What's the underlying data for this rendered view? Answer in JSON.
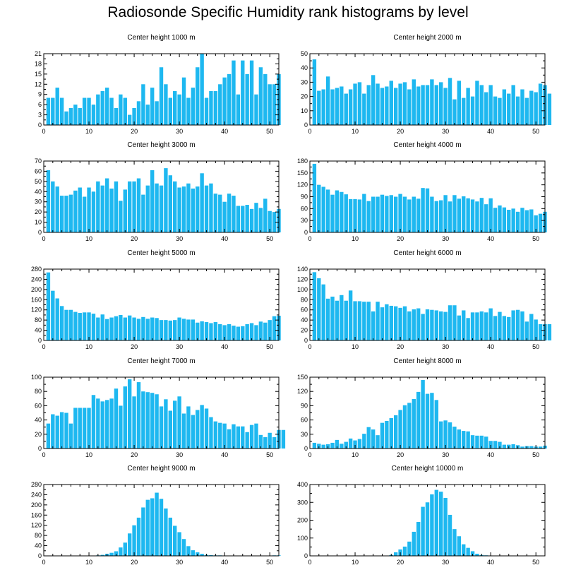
{
  "title": "Radiosonde Specific Humidity rank histograms by level",
  "colors": {
    "bar": "#1EB8F0",
    "bar_edge": "#ffffff",
    "axis": "#000000"
  },
  "chart_data": [
    {
      "type": "bar",
      "title": "Center height 1000 m",
      "xlim": [
        0,
        52
      ],
      "ylim": [
        0,
        21
      ],
      "xticks": [
        0,
        10,
        20,
        30,
        40,
        50
      ],
      "yticks": [
        0,
        3,
        6,
        9,
        12,
        15,
        18,
        21
      ],
      "xlabel": "",
      "ylabel": "",
      "values": [
        8,
        8,
        11,
        8,
        4,
        5,
        6,
        5,
        8,
        8,
        6,
        9,
        10,
        11,
        8,
        5,
        9,
        8,
        3,
        5,
        7,
        12,
        6,
        11,
        7,
        17,
        12,
        8,
        10,
        9,
        14,
        8,
        11,
        17,
        21,
        8,
        10,
        10,
        12,
        14,
        15,
        19,
        9,
        19,
        15,
        19,
        9,
        17,
        15,
        12,
        12,
        15
      ]
    },
    {
      "type": "bar",
      "title": "Center height 2000 m",
      "xlim": [
        0,
        52
      ],
      "ylim": [
        0,
        50
      ],
      "xticks": [
        0,
        10,
        20,
        30,
        40,
        50
      ],
      "yticks": [
        0,
        10,
        20,
        30,
        40,
        50
      ],
      "xlabel": "",
      "ylabel": "",
      "values": [
        46,
        24,
        25,
        34,
        25,
        26,
        27,
        22,
        25,
        29,
        30,
        22,
        28,
        35,
        29,
        26,
        27,
        31,
        26,
        29,
        30,
        25,
        32,
        27,
        28,
        28,
        32,
        28,
        30,
        26,
        33,
        18,
        31,
        19,
        26,
        20,
        31,
        28,
        23,
        28,
        20,
        19,
        25,
        22,
        28,
        20,
        25,
        19,
        24,
        23,
        29,
        28,
        22
      ]
    },
    {
      "type": "bar",
      "title": "Center height 3000 m",
      "xlim": [
        0,
        52
      ],
      "ylim": [
        0,
        70
      ],
      "xticks": [
        0,
        10,
        20,
        30,
        40,
        50
      ],
      "yticks": [
        0,
        10,
        20,
        30,
        40,
        50,
        60,
        70
      ],
      "xlabel": "",
      "ylabel": "",
      "values": [
        61,
        50,
        45,
        36,
        36,
        37,
        41,
        44,
        35,
        44,
        40,
        50,
        46,
        53,
        43,
        50,
        31,
        42,
        50,
        50,
        53,
        37,
        46,
        61,
        48,
        46,
        63,
        56,
        50,
        44,
        45,
        48,
        43,
        45,
        58,
        46,
        48,
        38,
        37,
        30,
        38,
        36,
        26,
        26,
        27,
        23,
        29,
        24,
        33,
        21,
        20,
        23
      ]
    },
    {
      "type": "bar",
      "title": "Center height 4000 m",
      "xlim": [
        0,
        52
      ],
      "ylim": [
        0,
        180
      ],
      "xticks": [
        0,
        10,
        20,
        30,
        40,
        50
      ],
      "yticks": [
        0,
        30,
        60,
        90,
        120,
        150,
        180
      ],
      "xlabel": "",
      "ylabel": "",
      "values": [
        173,
        120,
        115,
        108,
        95,
        106,
        102,
        96,
        84,
        84,
        83,
        97,
        79,
        90,
        90,
        95,
        92,
        94,
        90,
        97,
        90,
        83,
        90,
        85,
        112,
        111,
        90,
        79,
        81,
        94,
        78,
        94,
        85,
        91,
        86,
        83,
        78,
        87,
        71,
        86,
        62,
        68,
        63,
        57,
        60,
        52,
        62,
        56,
        58,
        43,
        47,
        52
      ]
    },
    {
      "type": "bar",
      "title": "Center height 5000 m",
      "xlim": [
        0,
        52
      ],
      "ylim": [
        0,
        280
      ],
      "xticks": [
        0,
        10,
        20,
        30,
        40,
        50
      ],
      "yticks": [
        0,
        40,
        80,
        120,
        160,
        200,
        240,
        280
      ],
      "xlabel": "",
      "ylabel": "",
      "values": [
        267,
        195,
        165,
        135,
        120,
        120,
        112,
        108,
        110,
        110,
        105,
        90,
        102,
        84,
        90,
        95,
        100,
        90,
        98,
        90,
        85,
        92,
        85,
        90,
        88,
        80,
        80,
        78,
        80,
        90,
        85,
        82,
        82,
        70,
        75,
        72,
        68,
        72,
        64,
        60,
        64,
        58,
        54,
        56,
        64,
        68,
        60,
        74,
        70,
        80,
        95,
        97
      ]
    },
    {
      "type": "bar",
      "title": "Center height 6000 m",
      "xlim": [
        0,
        52
      ],
      "ylim": [
        0,
        140
      ],
      "xticks": [
        0,
        10,
        20,
        30,
        40,
        50
      ],
      "yticks": [
        0,
        20,
        40,
        60,
        80,
        100,
        120,
        140
      ],
      "xlabel": "",
      "ylabel": "",
      "values": [
        134,
        122,
        110,
        82,
        86,
        78,
        89,
        78,
        98,
        77,
        77,
        76,
        76,
        57,
        76,
        65,
        71,
        68,
        67,
        64,
        67,
        57,
        61,
        63,
        52,
        61,
        60,
        59,
        57,
        56,
        69,
        69,
        49,
        59,
        44,
        55,
        55,
        57,
        55,
        63,
        48,
        56,
        48,
        46,
        59,
        60,
        57,
        37,
        52,
        41,
        32,
        32,
        32
      ]
    },
    {
      "type": "bar",
      "title": "Center height 7000 m",
      "xlim": [
        0,
        52
      ],
      "ylim": [
        0,
        100
      ],
      "xticks": [
        0,
        10,
        20,
        30,
        40,
        50
      ],
      "yticks": [
        0,
        20,
        40,
        60,
        80,
        100
      ],
      "xlabel": "",
      "ylabel": "",
      "values": [
        35,
        48,
        46,
        51,
        50,
        35,
        57,
        57,
        57,
        57,
        75,
        70,
        66,
        68,
        70,
        84,
        60,
        87,
        97,
        73,
        93,
        80,
        79,
        78,
        76,
        59,
        69,
        53,
        67,
        73,
        49,
        59,
        47,
        54,
        61,
        56,
        44,
        38,
        36,
        35,
        27,
        34,
        31,
        31,
        23,
        33,
        35,
        19,
        16,
        22,
        16,
        26,
        26
      ]
    },
    {
      "type": "bar",
      "title": "Center height 8000 m",
      "xlim": [
        0,
        52
      ],
      "ylim": [
        0,
        150
      ],
      "xticks": [
        0,
        10,
        20,
        30,
        40,
        50
      ],
      "yticks": [
        0,
        30,
        60,
        90,
        120,
        150
      ],
      "xlabel": "",
      "ylabel": "",
      "values": [
        12,
        10,
        8,
        9,
        12,
        18,
        10,
        14,
        21,
        17,
        20,
        31,
        45,
        40,
        28,
        54,
        58,
        64,
        70,
        81,
        91,
        96,
        104,
        119,
        144,
        115,
        117,
        102,
        57,
        59,
        55,
        46,
        40,
        37,
        36,
        28,
        27,
        27,
        25,
        16,
        16,
        14,
        8,
        8,
        9,
        7,
        4,
        5,
        5,
        4,
        4,
        6
      ]
    },
    {
      "type": "bar",
      "title": "Center height 9000 m",
      "xlim": [
        0,
        52
      ],
      "ylim": [
        0,
        280
      ],
      "xticks": [
        0,
        10,
        20,
        30,
        40,
        50
      ],
      "yticks": [
        0,
        40,
        80,
        120,
        160,
        200,
        240,
        280
      ],
      "xlabel": "",
      "ylabel": "",
      "values": [
        0,
        0,
        0,
        0,
        0,
        0,
        0,
        0,
        0,
        1,
        1,
        2,
        4,
        8,
        12,
        18,
        33,
        52,
        88,
        120,
        150,
        190,
        220,
        226,
        248,
        224,
        186,
        150,
        118,
        93,
        66,
        38,
        22,
        14,
        8,
        4,
        3,
        2,
        2,
        1,
        1,
        0,
        0,
        0,
        0,
        0,
        0,
        0,
        0,
        1,
        2,
        2
      ]
    },
    {
      "type": "bar",
      "title": "Center height 10000 m",
      "xlim": [
        0,
        52
      ],
      "ylim": [
        0,
        400
      ],
      "xticks": [
        0,
        10,
        20,
        30,
        40,
        50
      ],
      "yticks": [
        0,
        100,
        200,
        300,
        400
      ],
      "xlabel": "",
      "ylabel": "",
      "values": [
        0,
        0,
        0,
        0,
        0,
        0,
        0,
        0,
        0,
        0,
        0,
        0,
        0,
        0,
        0,
        0,
        2,
        5,
        20,
        36,
        52,
        80,
        135,
        190,
        275,
        300,
        345,
        370,
        360,
        325,
        230,
        150,
        110,
        65,
        45,
        26,
        12,
        5,
        3,
        2,
        1,
        0,
        0,
        0,
        0,
        0,
        0,
        0,
        0,
        0,
        0,
        0
      ]
    }
  ]
}
